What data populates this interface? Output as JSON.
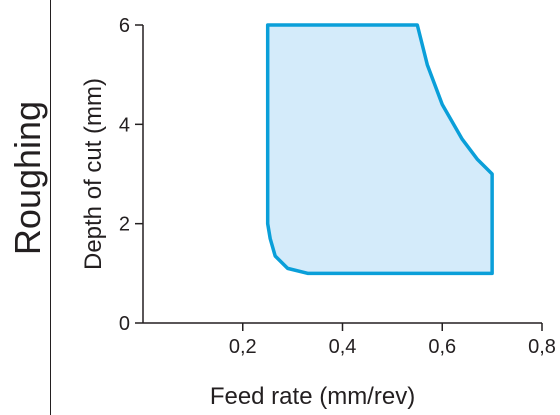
{
  "side_label": "Roughing",
  "chart_data": {
    "type": "area",
    "title": "",
    "xlabel": "Feed rate (mm/rev)",
    "ylabel": "Depth of cut (mm)",
    "xlim": [
      0,
      0.8
    ],
    "ylim": [
      0,
      6
    ],
    "x_ticks": [
      {
        "value": 0.2,
        "label": "0,2"
      },
      {
        "value": 0.4,
        "label": "0,4"
      },
      {
        "value": 0.6,
        "label": "0,6"
      },
      {
        "value": 0.8,
        "label": "0,8"
      }
    ],
    "y_ticks": [
      {
        "value": 0,
        "label": "0"
      },
      {
        "value": 2,
        "label": "2"
      },
      {
        "value": 4,
        "label": "4"
      },
      {
        "value": 6,
        "label": "6"
      }
    ],
    "grid": false,
    "region": {
      "boundary": [
        {
          "x": 0.25,
          "y": 6.0
        },
        {
          "x": 0.55,
          "y": 6.0
        },
        {
          "x": 0.57,
          "y": 5.2
        },
        {
          "x": 0.6,
          "y": 4.4
        },
        {
          "x": 0.64,
          "y": 3.7
        },
        {
          "x": 0.67,
          "y": 3.3
        },
        {
          "x": 0.7,
          "y": 3.0
        },
        {
          "x": 0.7,
          "y": 1.0
        },
        {
          "x": 0.33,
          "y": 1.0
        },
        {
          "x": 0.29,
          "y": 1.1
        },
        {
          "x": 0.265,
          "y": 1.35
        },
        {
          "x": 0.255,
          "y": 1.7
        },
        {
          "x": 0.25,
          "y": 2.0
        }
      ]
    },
    "colors": {
      "fill": "#d4ebfa",
      "stroke": "#0a9fd9",
      "axis": "#231f20"
    }
  }
}
